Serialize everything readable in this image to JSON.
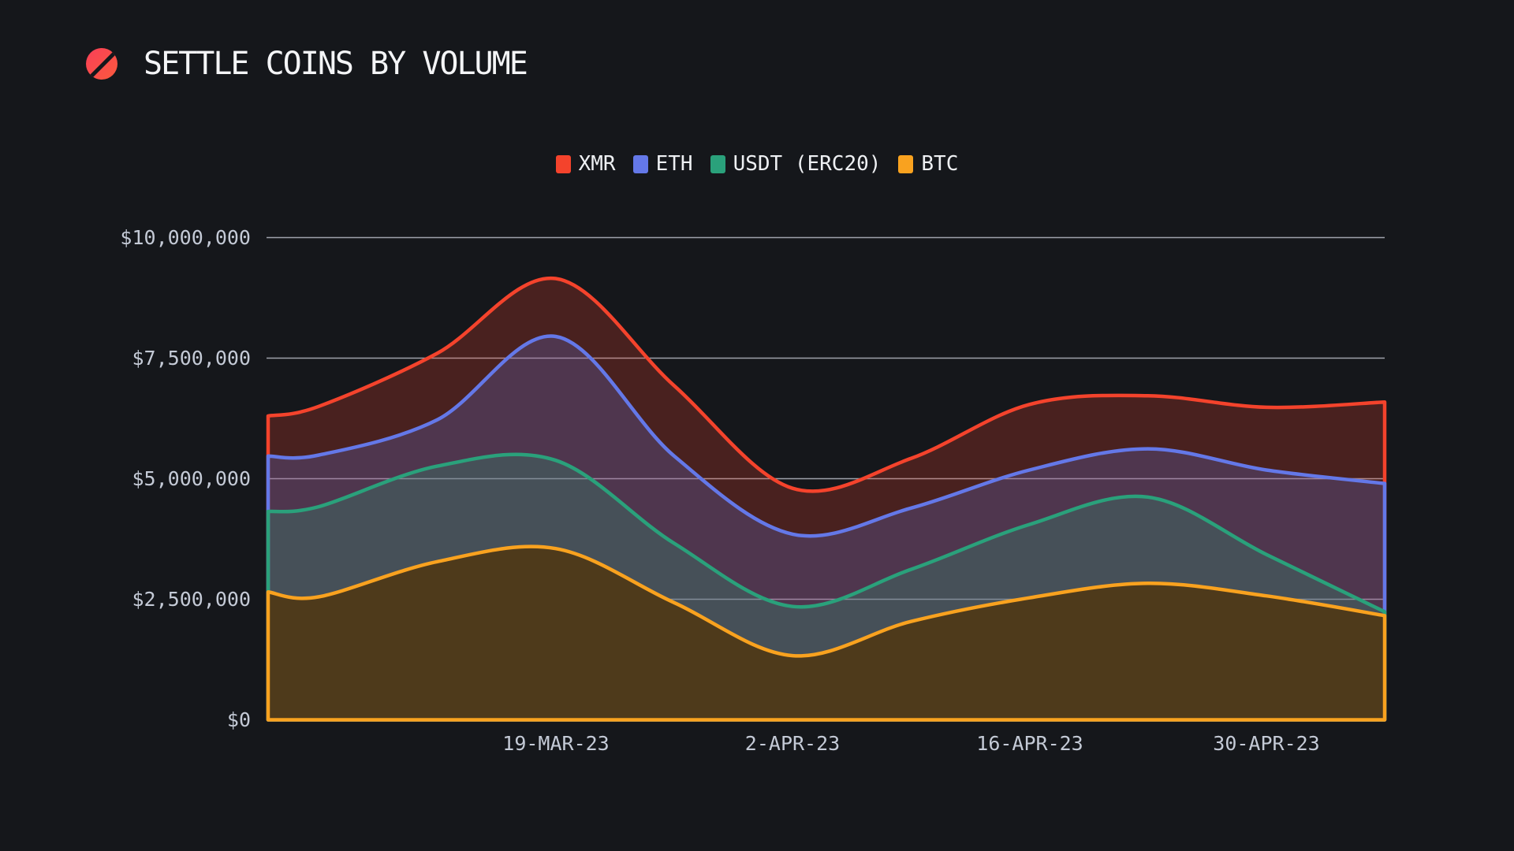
{
  "chart_data": {
    "type": "area",
    "stacked": true,
    "title": "SETTLE COINS BY VOLUME",
    "legend_position": "top-center",
    "grid": "horizontal",
    "background": "#15171b",
    "gridline_color": "#ccd1dc",
    "axis_label_color": "#c4cad6",
    "ylim": [
      0,
      10000000
    ],
    "y_tick_labels": [
      "$10,000,000",
      "$7,500,000",
      "$5,000,000",
      "$2,500,000",
      "$0"
    ],
    "y_tick_values": [
      10000000,
      7500000,
      5000000,
      2500000,
      0
    ],
    "x_tick_labels": [
      "19-MAR-23",
      "2-APR-23",
      "16-APR-23",
      "30-APR-23"
    ],
    "x_tick_days": [
      17,
      31,
      45,
      59
    ],
    "x_dates": [
      "02-MAR-23",
      "05-MAR-23",
      "12-MAR-23",
      "19-MAR-23",
      "26-MAR-23",
      "02-APR-23",
      "09-APR-23",
      "16-APR-23",
      "23-APR-23",
      "30-APR-23",
      "07-MAY-23"
    ],
    "x_days": [
      0,
      3,
      10,
      17,
      24,
      31,
      38,
      45,
      52,
      59,
      66
    ],
    "series": [
      {
        "name": "XMR",
        "color": "#f4432c",
        "fill": "#f4432c",
        "fill_opacity": 0.24,
        "values_usd": [
          830000,
          1010000,
          1380000,
          1200000,
          1460000,
          950000,
          1030000,
          1360000,
          1100000,
          1300000,
          1690000
        ]
      },
      {
        "name": "ETH",
        "color": "#6478e8",
        "fill": "#6478e8",
        "fill_opacity": 0.24,
        "values_usd": [
          1150000,
          1070000,
          960000,
          2570000,
          1810000,
          1500000,
          1270000,
          1130000,
          1000000,
          1750000,
          2660000
        ]
      },
      {
        "name": "USDT (ERC20)",
        "color": "#2aa17b",
        "fill": "#2aa17b",
        "fill_opacity": 0.24,
        "values_usd": [
          1670000,
          1870000,
          1980000,
          1830000,
          1230000,
          1020000,
          1080000,
          1520000,
          1790000,
          860000,
          80000
        ]
      },
      {
        "name": "BTC",
        "color": "#f9a21f",
        "fill": "#4e3a1b",
        "fill_opacity": 1,
        "values_usd": [
          2650000,
          2550000,
          3280000,
          3550000,
          2430000,
          1330000,
          2040000,
          2530000,
          2830000,
          2570000,
          2160000
        ]
      }
    ]
  }
}
